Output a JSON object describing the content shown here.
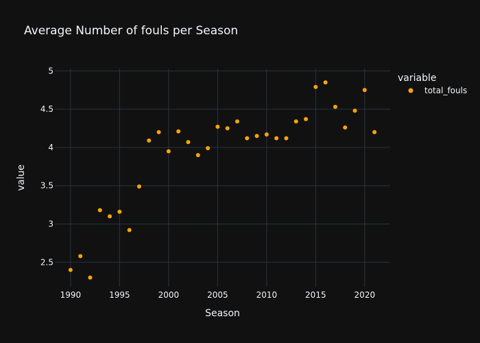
{
  "chart_data": {
    "type": "scatter",
    "title": "Average Number of fouls per Season",
    "xlabel": "Season",
    "ylabel": "value",
    "xlim": [
      1988.4,
      2022.6
    ],
    "ylim": [
      2.18,
      5.03
    ],
    "x_ticks": [
      1990,
      1995,
      2000,
      2005,
      2010,
      2015,
      2020
    ],
    "y_ticks": [
      2.5,
      3,
      3.5,
      4,
      4.5,
      5
    ],
    "y_tick_labels": [
      "2.5",
      "3",
      "3.5",
      "4",
      "4.5",
      "5"
    ],
    "grid": true,
    "legend": {
      "title": "variable",
      "placement": "right"
    },
    "series": [
      {
        "name": "total_fouls",
        "color": "#FFA500",
        "x": [
          1990,
          1991,
          1992,
          1993,
          1994,
          1995,
          1996,
          1997,
          1998,
          1999,
          2000,
          2001,
          2002,
          2003,
          2004,
          2005,
          2006,
          2007,
          2008,
          2009,
          2010,
          2011,
          2012,
          2013,
          2014,
          2015,
          2016,
          2017,
          2018,
          2019,
          2020,
          2021
        ],
        "y": [
          2.4,
          2.58,
          2.3,
          3.18,
          3.1,
          3.16,
          2.92,
          3.49,
          4.09,
          4.2,
          3.95,
          4.21,
          4.07,
          3.9,
          3.99,
          4.27,
          4.25,
          4.34,
          4.12,
          4.15,
          4.17,
          4.12,
          4.12,
          4.34,
          4.37,
          4.79,
          4.85,
          4.53,
          4.26,
          4.48,
          4.75,
          4.2
        ]
      }
    ]
  }
}
